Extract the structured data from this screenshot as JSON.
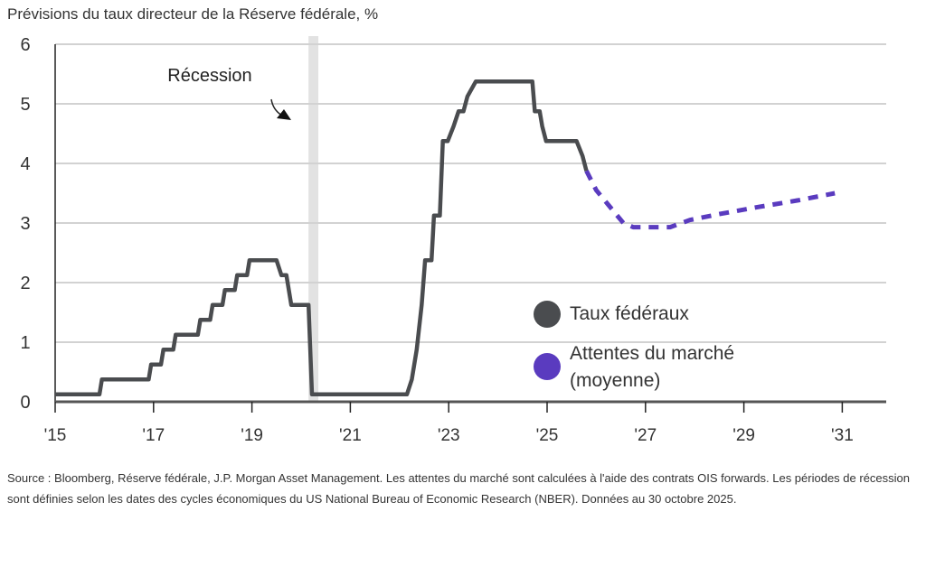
{
  "title": "Prévisions du taux directeur de la Réserve fédérale, %",
  "source": "Source : Bloomberg, Réserve fédérale, J.P. Morgan Asset Management. Les attentes du marché sont calculées à l'aide des contrats OIS forwards. Les périodes de récession sont définies selon les dates des cycles économiques du US National Bureau of Economic Research (NBER). Données au 30 octobre 2025.",
  "chart_data": {
    "type": "line",
    "title": "Prévisions du taux directeur de la Réserve fédérale, %",
    "xlim": [
      2015,
      2032
    ],
    "ylim": [
      0,
      6
    ],
    "grid": true,
    "legend_position": "right",
    "x_ticks": [
      {
        "value": 2015,
        "label": "'15"
      },
      {
        "value": 2017,
        "label": "'17"
      },
      {
        "value": 2019,
        "label": "'19"
      },
      {
        "value": 2021,
        "label": "'21"
      },
      {
        "value": 2023,
        "label": "'23"
      },
      {
        "value": 2025,
        "label": "'25"
      },
      {
        "value": 2027,
        "label": "'27"
      },
      {
        "value": 2029,
        "label": "'29"
      },
      {
        "value": 2031,
        "label": "'31"
      }
    ],
    "y_ticks": [
      "0",
      "1",
      "2",
      "3",
      "4",
      "5",
      "6"
    ],
    "annotations": [
      {
        "text": "Récession",
        "x_range": [
          2020.15,
          2020.35
        ]
      }
    ],
    "series": [
      {
        "name": "Taux fédéraux",
        "color": "#4a4c4f",
        "style": "solid",
        "points": [
          [
            2015,
            0.125
          ],
          [
            2015.9,
            0.125
          ],
          [
            2015.95,
            0.375
          ],
          [
            2016.9,
            0.375
          ],
          [
            2016.95,
            0.625
          ],
          [
            2017.15,
            0.625
          ],
          [
            2017.2,
            0.875
          ],
          [
            2017.4,
            0.875
          ],
          [
            2017.45,
            1.125
          ],
          [
            2017.9,
            1.125
          ],
          [
            2017.95,
            1.375
          ],
          [
            2018.15,
            1.375
          ],
          [
            2018.2,
            1.625
          ],
          [
            2018.4,
            1.625
          ],
          [
            2018.45,
            1.875
          ],
          [
            2018.65,
            1.875
          ],
          [
            2018.7,
            2.125
          ],
          [
            2018.9,
            2.125
          ],
          [
            2018.95,
            2.375
          ],
          [
            2019.5,
            2.375
          ],
          [
            2019.6,
            2.125
          ],
          [
            2019.7,
            2.125
          ],
          [
            2019.8,
            1.625
          ],
          [
            2020.15,
            1.625
          ],
          [
            2020.22,
            0.125
          ],
          [
            2022.15,
            0.125
          ],
          [
            2022.25,
            0.375
          ],
          [
            2022.35,
            0.875
          ],
          [
            2022.45,
            1.625
          ],
          [
            2022.52,
            2.375
          ],
          [
            2022.65,
            2.375
          ],
          [
            2022.7,
            3.125
          ],
          [
            2022.82,
            3.125
          ],
          [
            2022.88,
            4.375
          ],
          [
            2022.98,
            4.375
          ],
          [
            2023.1,
            4.625
          ],
          [
            2023.2,
            4.875
          ],
          [
            2023.3,
            4.875
          ],
          [
            2023.38,
            5.125
          ],
          [
            2023.55,
            5.375
          ],
          [
            2024.7,
            5.375
          ],
          [
            2024.75,
            4.875
          ],
          [
            2024.85,
            4.875
          ],
          [
            2024.9,
            4.625
          ],
          [
            2024.98,
            4.375
          ],
          [
            2025.6,
            4.375
          ],
          [
            2025.72,
            4.125
          ],
          [
            2025.8,
            3.875
          ]
        ]
      },
      {
        "name": "Attentes du marché (moyenne)",
        "color": "#5a3bbf",
        "style": "dashed",
        "points": [
          [
            2025.8,
            3.875
          ],
          [
            2026.0,
            3.55
          ],
          [
            2026.3,
            3.25
          ],
          [
            2026.55,
            3.0
          ],
          [
            2026.75,
            2.93
          ],
          [
            2027.5,
            2.93
          ],
          [
            2027.9,
            3.05
          ],
          [
            2028.5,
            3.15
          ],
          [
            2029.3,
            3.27
          ],
          [
            2030.1,
            3.38
          ],
          [
            2030.85,
            3.5
          ]
        ]
      }
    ]
  },
  "legend": [
    {
      "label": "Taux fédéraux",
      "color": "#4a4c4f"
    },
    {
      "label": "Attentes du marché (moyenne)",
      "color": "#5a3bbf"
    }
  ]
}
